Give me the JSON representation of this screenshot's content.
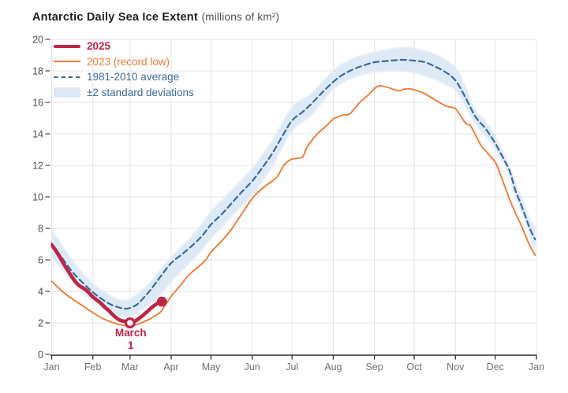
{
  "title": {
    "main": "Antarctic Daily Sea Ice Extent",
    "unit": "(millions of km²)"
  },
  "legend": [
    {
      "label": "2025",
      "type": "line-thick",
      "color": "#c02546",
      "bold": true
    },
    {
      "label": "2023 (record low)",
      "type": "line",
      "color": "#ef7b35",
      "bold": false
    },
    {
      "label": "1981-2010 average",
      "type": "line-dashed",
      "color": "#3a6b9e",
      "bold": false
    },
    {
      "label": "±2 standard deviations",
      "type": "band",
      "color": "#dde9f5",
      "text_color": "#3a6b9e",
      "bold": false
    }
  ],
  "chart_data": {
    "type": "line",
    "title": "Antarctic Daily Sea Ice Extent",
    "ylabel": "millions of km²",
    "ylim": [
      0,
      20
    ],
    "grid": true,
    "legend_position": "top-left",
    "x_mode": "day-of-year",
    "x_ticks": {
      "labels": [
        "Jan",
        "Feb",
        "Mar",
        "Apr",
        "May",
        "Jun",
        "Jul",
        "Aug",
        "Sep",
        "Oct",
        "Nov",
        "Dec",
        "Jan"
      ],
      "days": [
        0,
        31,
        59,
        90,
        120,
        151,
        181,
        212,
        243,
        273,
        304,
        334,
        365
      ]
    },
    "y_ticks": [
      0,
      2,
      4,
      6,
      8,
      10,
      12,
      14,
      16,
      18,
      20
    ],
    "axis_color": "#2e2e2e",
    "grid_color": "#e4e4e4",
    "x_label_color": "#707070",
    "y_label_color": "#4a4a4a",
    "band": {
      "name": "±2 standard deviations",
      "color": "#dde9f5",
      "points": [
        [
          0,
          6.2,
          7.95
        ],
        [
          16,
          4.55,
          5.95
        ],
        [
          31,
          3.35,
          4.55
        ],
        [
          45,
          2.6,
          3.7
        ],
        [
          56,
          2.35,
          3.45
        ],
        [
          66,
          2.7,
          3.95
        ],
        [
          74,
          3.2,
          4.6
        ],
        [
          83,
          3.87,
          5.5
        ],
        [
          90,
          4.6,
          6.2
        ],
        [
          98,
          5.3,
          6.9
        ],
        [
          105,
          5.9,
          7.5
        ],
        [
          113,
          6.6,
          8.3
        ],
        [
          120,
          7.35,
          9.1
        ],
        [
          135,
          8.7,
          10.4
        ],
        [
          151,
          10.1,
          11.85
        ],
        [
          166,
          11.9,
          13.6
        ],
        [
          181,
          14.15,
          15.7
        ],
        [
          196,
          15.2,
          16.6
        ],
        [
          212,
          16.8,
          18.05
        ],
        [
          227,
          17.55,
          18.8
        ],
        [
          243,
          17.9,
          19.2
        ],
        [
          258,
          18.0,
          19.45
        ],
        [
          265,
          17.95,
          19.5
        ],
        [
          273,
          17.85,
          19.45
        ],
        [
          288,
          17.45,
          19.1
        ],
        [
          304,
          16.75,
          18.25
        ],
        [
          311,
          15.8,
          17.1
        ],
        [
          319,
          14.6,
          15.55
        ],
        [
          327,
          13.8,
          14.8
        ],
        [
          334,
          13.0,
          13.85
        ],
        [
          341,
          12.0,
          12.7
        ],
        [
          345,
          11.2,
          12.0
        ],
        [
          349,
          10.0,
          11.0
        ],
        [
          353,
          9.2,
          10.2
        ],
        [
          357,
          8.3,
          9.3
        ],
        [
          360,
          7.5,
          8.6
        ],
        [
          364,
          6.4,
          8.1
        ]
      ]
    },
    "series": [
      {
        "name": "1981-2010 average",
        "color": "#3a6b9e",
        "width": 2.2,
        "dash": [
          7,
          4.6
        ],
        "points": [
          [
            0,
            7.05
          ],
          [
            8,
            6.1
          ],
          [
            16,
            5.2
          ],
          [
            24,
            4.5
          ],
          [
            31,
            3.95
          ],
          [
            38,
            3.5
          ],
          [
            45,
            3.15
          ],
          [
            52,
            2.95
          ],
          [
            56,
            2.9
          ],
          [
            59,
            2.95
          ],
          [
            63,
            3.1
          ],
          [
            66,
            3.3
          ],
          [
            74,
            4.05
          ],
          [
            82,
            4.95
          ],
          [
            90,
            5.8
          ],
          [
            98,
            6.35
          ],
          [
            105,
            6.85
          ],
          [
            113,
            7.5
          ],
          [
            120,
            8.25
          ],
          [
            128,
            8.9
          ],
          [
            135,
            9.55
          ],
          [
            143,
            10.3
          ],
          [
            151,
            11.0
          ],
          [
            159,
            11.9
          ],
          [
            166,
            12.75
          ],
          [
            174,
            13.9
          ],
          [
            181,
            14.85
          ],
          [
            189,
            15.4
          ],
          [
            196,
            15.95
          ],
          [
            204,
            16.65
          ],
          [
            212,
            17.3
          ],
          [
            219,
            17.75
          ],
          [
            227,
            18.1
          ],
          [
            235,
            18.35
          ],
          [
            243,
            18.55
          ],
          [
            251,
            18.62
          ],
          [
            258,
            18.67
          ],
          [
            265,
            18.7
          ],
          [
            273,
            18.65
          ],
          [
            281,
            18.55
          ],
          [
            288,
            18.3
          ],
          [
            296,
            17.95
          ],
          [
            304,
            17.4
          ],
          [
            311,
            16.4
          ],
          [
            319,
            15.1
          ],
          [
            327,
            14.3
          ],
          [
            334,
            13.4
          ],
          [
            341,
            12.3
          ],
          [
            345,
            11.6
          ],
          [
            349,
            10.45
          ],
          [
            353,
            9.6
          ],
          [
            357,
            8.7
          ],
          [
            360,
            8.0
          ],
          [
            364,
            7.3
          ]
        ]
      },
      {
        "name": "2023 (record low)",
        "color": "#ef7b35",
        "width": 1.9,
        "points": [
          [
            0,
            4.65
          ],
          [
            8,
            4.0
          ],
          [
            16,
            3.5
          ],
          [
            24,
            3.05
          ],
          [
            31,
            2.65
          ],
          [
            38,
            2.3
          ],
          [
            45,
            2.05
          ],
          [
            51,
            1.9
          ],
          [
            56,
            1.82
          ],
          [
            61,
            1.85
          ],
          [
            66,
            1.95
          ],
          [
            70,
            2.1
          ],
          [
            74,
            2.25
          ],
          [
            78,
            2.45
          ],
          [
            82,
            2.7
          ],
          [
            86,
            3.2
          ],
          [
            90,
            3.7
          ],
          [
            94,
            4.1
          ],
          [
            98,
            4.5
          ],
          [
            104,
            5.1
          ],
          [
            111,
            5.6
          ],
          [
            116,
            6.0
          ],
          [
            120,
            6.5
          ],
          [
            128,
            7.2
          ],
          [
            135,
            7.9
          ],
          [
            143,
            8.9
          ],
          [
            151,
            9.9
          ],
          [
            158,
            10.5
          ],
          [
            166,
            11.0
          ],
          [
            170,
            11.3
          ],
          [
            174,
            11.9
          ],
          [
            177,
            12.2
          ],
          [
            181,
            12.4
          ],
          [
            185,
            12.45
          ],
          [
            189,
            12.55
          ],
          [
            192,
            13.1
          ],
          [
            196,
            13.6
          ],
          [
            200,
            14.0
          ],
          [
            204,
            14.3
          ],
          [
            208,
            14.6
          ],
          [
            212,
            14.95
          ],
          [
            216,
            15.1
          ],
          [
            220,
            15.2
          ],
          [
            224,
            15.25
          ],
          [
            228,
            15.6
          ],
          [
            232,
            16.0
          ],
          [
            236,
            16.3
          ],
          [
            240,
            16.6
          ],
          [
            244,
            16.95
          ],
          [
            247,
            17.05
          ],
          [
            251,
            17.0
          ],
          [
            255,
            16.9
          ],
          [
            258,
            16.8
          ],
          [
            262,
            16.75
          ],
          [
            266,
            16.85
          ],
          [
            270,
            16.85
          ],
          [
            273,
            16.8
          ],
          [
            277,
            16.7
          ],
          [
            281,
            16.55
          ],
          [
            285,
            16.35
          ],
          [
            288,
            16.2
          ],
          [
            292,
            16.0
          ],
          [
            296,
            15.8
          ],
          [
            300,
            15.7
          ],
          [
            304,
            15.6
          ],
          [
            309,
            15.0
          ],
          [
            312,
            14.65
          ],
          [
            315,
            14.55
          ],
          [
            319,
            13.95
          ],
          [
            323,
            13.3
          ],
          [
            327,
            12.9
          ],
          [
            330,
            12.6
          ],
          [
            334,
            12.2
          ],
          [
            338,
            11.4
          ],
          [
            341,
            10.7
          ],
          [
            345,
            9.8
          ],
          [
            349,
            9.0
          ],
          [
            353,
            8.3
          ],
          [
            357,
            7.5
          ],
          [
            360,
            6.9
          ],
          [
            364,
            6.3
          ]
        ]
      },
      {
        "name": "2025",
        "color": "#c02546",
        "width": 4.6,
        "points": [
          [
            0,
            6.95
          ],
          [
            3,
            6.6
          ],
          [
            6,
            6.2
          ],
          [
            9,
            5.75
          ],
          [
            12,
            5.35
          ],
          [
            15,
            4.95
          ],
          [
            18,
            4.6
          ],
          [
            21,
            4.35
          ],
          [
            24,
            4.2
          ],
          [
            27,
            4.0
          ],
          [
            31,
            3.65
          ],
          [
            34,
            3.45
          ],
          [
            37,
            3.25
          ],
          [
            40,
            3.0
          ],
          [
            43,
            2.78
          ],
          [
            46,
            2.52
          ],
          [
            49,
            2.3
          ],
          [
            52,
            2.15
          ],
          [
            55,
            2.1
          ],
          [
            57,
            2.05
          ],
          [
            59,
            2.0
          ],
          [
            61,
            2.05
          ],
          [
            63,
            2.12
          ],
          [
            66,
            2.3
          ],
          [
            69,
            2.5
          ],
          [
            72,
            2.72
          ],
          [
            75,
            2.95
          ],
          [
            78,
            3.15
          ],
          [
            80,
            3.25
          ],
          [
            83,
            3.35
          ]
        ]
      }
    ],
    "markers": [
      {
        "name": "march-1-marker",
        "day": 59,
        "value": 2.0,
        "style": "open",
        "color": "#c02546"
      },
      {
        "name": "latest-value-marker",
        "day": 83,
        "value": 3.35,
        "style": "filled",
        "color": "#c02546"
      }
    ],
    "annotation": {
      "lines": [
        "March",
        "1"
      ],
      "day": 59,
      "color": "#c02546"
    }
  }
}
